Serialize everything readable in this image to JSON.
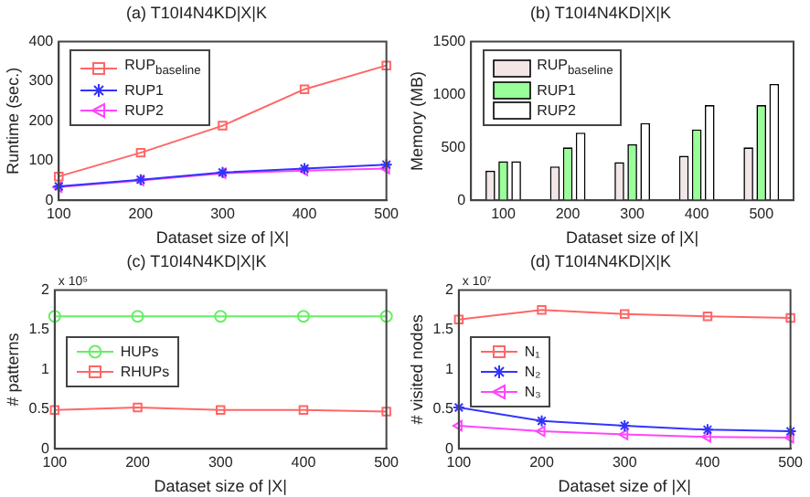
{
  "chart_data": [
    {
      "type": "line",
      "title": "(a) T10I4N4KD|X|K",
      "xlabel": "Dataset size of |X|",
      "ylabel": "Runtime (sec.)",
      "x": [
        100,
        200,
        300,
        400,
        500
      ],
      "xlim": [
        100,
        500
      ],
      "xticks": [
        100,
        200,
        300,
        400,
        500
      ],
      "ylim": [
        0,
        400
      ],
      "yticks": [
        0,
        100,
        200,
        300,
        400
      ],
      "grid": false,
      "legend": "top left",
      "series": [
        {
          "name": "RUP$_{baseline}$",
          "color": "#ff6666",
          "marker": "square",
          "values": [
            60,
            120,
            188,
            280,
            340
          ]
        },
        {
          "name": "RUP1",
          "color": "#3333ff",
          "marker": "cross",
          "values": [
            35,
            52,
            70,
            80,
            90
          ]
        },
        {
          "name": "RUP2",
          "color": "#ff44ff",
          "marker": "triangle",
          "values": [
            33,
            50,
            68,
            75,
            80
          ]
        }
      ]
    },
    {
      "type": "bar",
      "title": "(b) T10I4N4KD|X|K",
      "xlabel": "Dataset size of |X|",
      "ylabel": "Memory (MB)",
      "categories": [
        "100",
        "200",
        "300",
        "400",
        "500"
      ],
      "ylim": [
        0,
        1500
      ],
      "yticks": [
        0,
        500,
        1000,
        1500
      ],
      "grid": false,
      "legend": "top left",
      "series": [
        {
          "name": "RUP$_{baseline}$",
          "color": "#f2e6e6",
          "values": [
            280,
            320,
            360,
            420,
            500
          ]
        },
        {
          "name": "RUP1",
          "color": "#99ff99",
          "values": [
            370,
            500,
            530,
            670,
            900
          ]
        },
        {
          "name": "RUP2",
          "color": "#ffffff",
          "values": [
            370,
            640,
            730,
            900,
            1100
          ]
        }
      ]
    },
    {
      "type": "line",
      "title": "(c) T10I4N4KD|X|K",
      "xlabel": "Dataset size of |X|",
      "ylabel": "# patterns",
      "annotations": [
        "x 10⁵"
      ],
      "x": [
        100,
        200,
        300,
        400,
        500
      ],
      "xlim": [
        100,
        500
      ],
      "xticks": [
        100,
        200,
        300,
        400,
        500
      ],
      "ylim": [
        0,
        2
      ],
      "yticks": [
        0,
        0.5,
        1,
        1.5,
        2
      ],
      "grid": false,
      "legend": "left",
      "series": [
        {
          "name": "HUPs",
          "color": "#66ee66",
          "marker": "circle",
          "values": [
            1.67,
            1.67,
            1.67,
            1.67,
            1.67
          ]
        },
        {
          "name": "RHUPs",
          "color": "#ff6666",
          "marker": "square",
          "values": [
            0.49,
            0.52,
            0.49,
            0.49,
            0.47
          ]
        }
      ]
    },
    {
      "type": "line",
      "title": "(d) T10I4N4KD|X|K",
      "xlabel": "Dataset size of |X|",
      "ylabel": "# visited nodes",
      "annotations": [
        "x 10⁷"
      ],
      "x": [
        100,
        200,
        300,
        400,
        500
      ],
      "xlim": [
        100,
        500
      ],
      "xticks": [
        100,
        200,
        300,
        400,
        500
      ],
      "ylim": [
        0,
        2
      ],
      "yticks": [
        0,
        0.5,
        1,
        1.5,
        2
      ],
      "grid": false,
      "legend": "left",
      "series": [
        {
          "name": "N₁",
          "color": "#ff6666",
          "marker": "square",
          "values": [
            1.63,
            1.75,
            1.7,
            1.67,
            1.65
          ]
        },
        {
          "name": "N₂",
          "color": "#3333ff",
          "marker": "cross",
          "values": [
            0.52,
            0.35,
            0.29,
            0.24,
            0.22
          ]
        },
        {
          "name": "N₃",
          "color": "#ff44ff",
          "marker": "triangle",
          "values": [
            0.29,
            0.22,
            0.18,
            0.15,
            0.14
          ]
        }
      ]
    }
  ]
}
